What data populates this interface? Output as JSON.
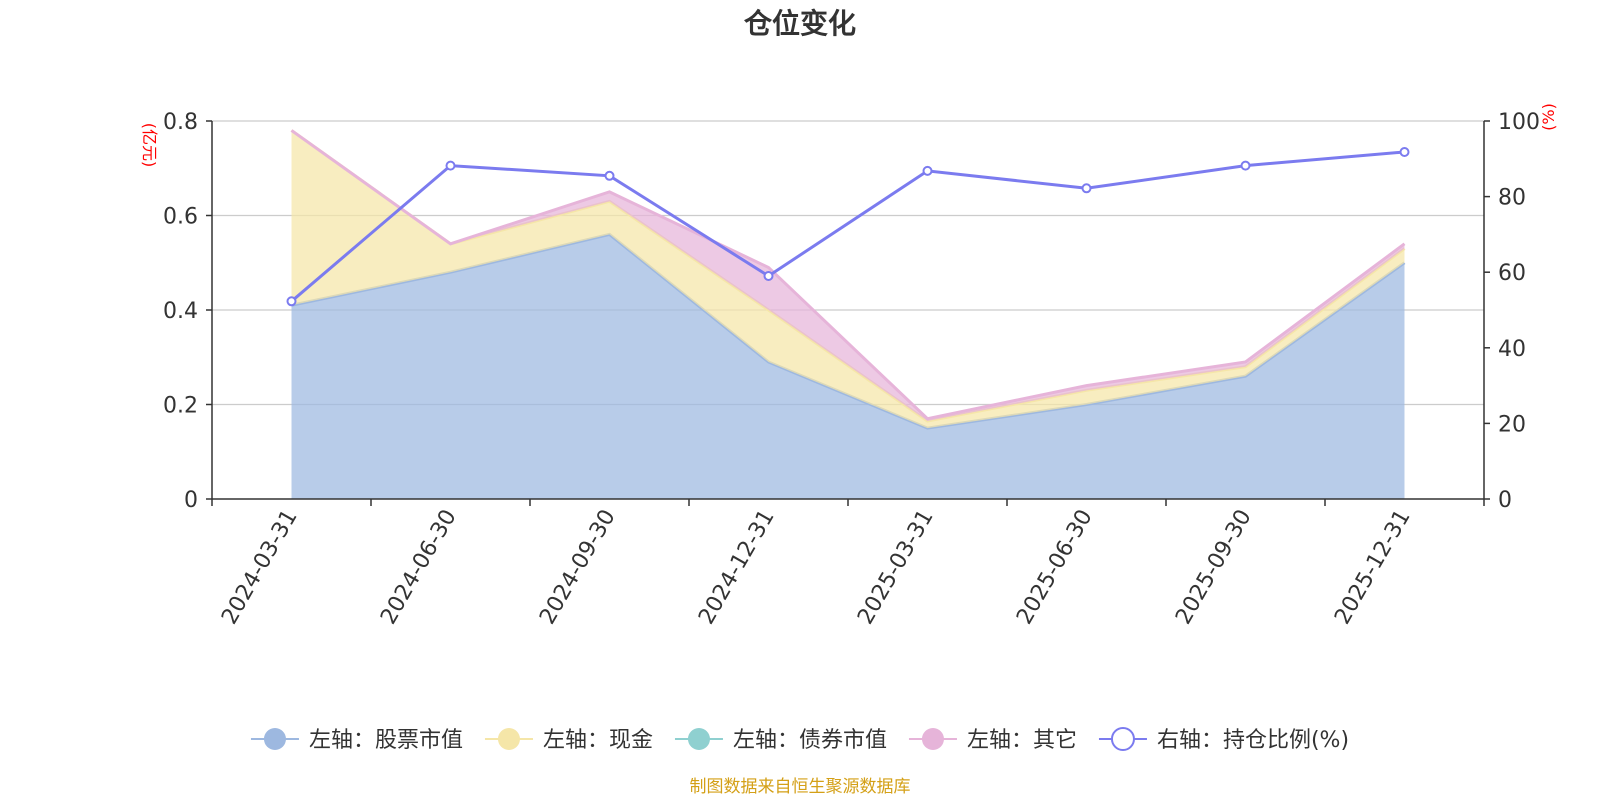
{
  "chart_data": {
    "type": "area",
    "title": "仓位变化",
    "categories": [
      "2024-03-31",
      "2024-06-30",
      "2024-09-30",
      "2024-12-31",
      "2025-03-31",
      "2025-06-30",
      "2025-09-30",
      "2025-12-31"
    ],
    "left_axis": {
      "unit": "(亿元)",
      "ylim": [
        0,
        0.8
      ],
      "ticks": [
        "0",
        "0.2",
        "0.4",
        "0.6",
        "0.8"
      ]
    },
    "right_axis": {
      "unit": "(%)",
      "ylim": [
        0,
        100
      ],
      "ticks": [
        "0",
        "20",
        "40",
        "60",
        "80",
        "100"
      ]
    },
    "series": [
      {
        "name": "左轴：股票市值",
        "axis": "left",
        "kind": "stacked-area",
        "color": "#9db8e0",
        "values": [
          0.41,
          0.48,
          0.56,
          0.29,
          0.15,
          0.2,
          0.26,
          0.5
        ]
      },
      {
        "name": "左轴：现金",
        "axis": "left",
        "kind": "stacked-area",
        "color": "#f5e6a8",
        "values": [
          0.37,
          0.06,
          0.07,
          0.11,
          0.015,
          0.03,
          0.02,
          0.03
        ]
      },
      {
        "name": "左轴：债券市值",
        "axis": "left",
        "kind": "stacked-area",
        "color": "#8fd0d0",
        "values": [
          0,
          0,
          0,
          0,
          0,
          0,
          0,
          0
        ]
      },
      {
        "name": "左轴：其它",
        "axis": "left",
        "kind": "stacked-area",
        "color": "#e6b4d9",
        "values": [
          0,
          0,
          0.02,
          0.09,
          0.005,
          0.01,
          0.01,
          0.01
        ]
      },
      {
        "name": "右轴：持仓比例(%)",
        "axis": "right",
        "kind": "line",
        "color": "#7b7bef",
        "values": [
          52.3,
          88.2,
          85.5,
          59.0,
          86.8,
          82.2,
          88.2,
          91.8
        ]
      }
    ],
    "legend_position": "bottom",
    "grid": true
  },
  "source_note": "制图数据来自恒生聚源数据库"
}
